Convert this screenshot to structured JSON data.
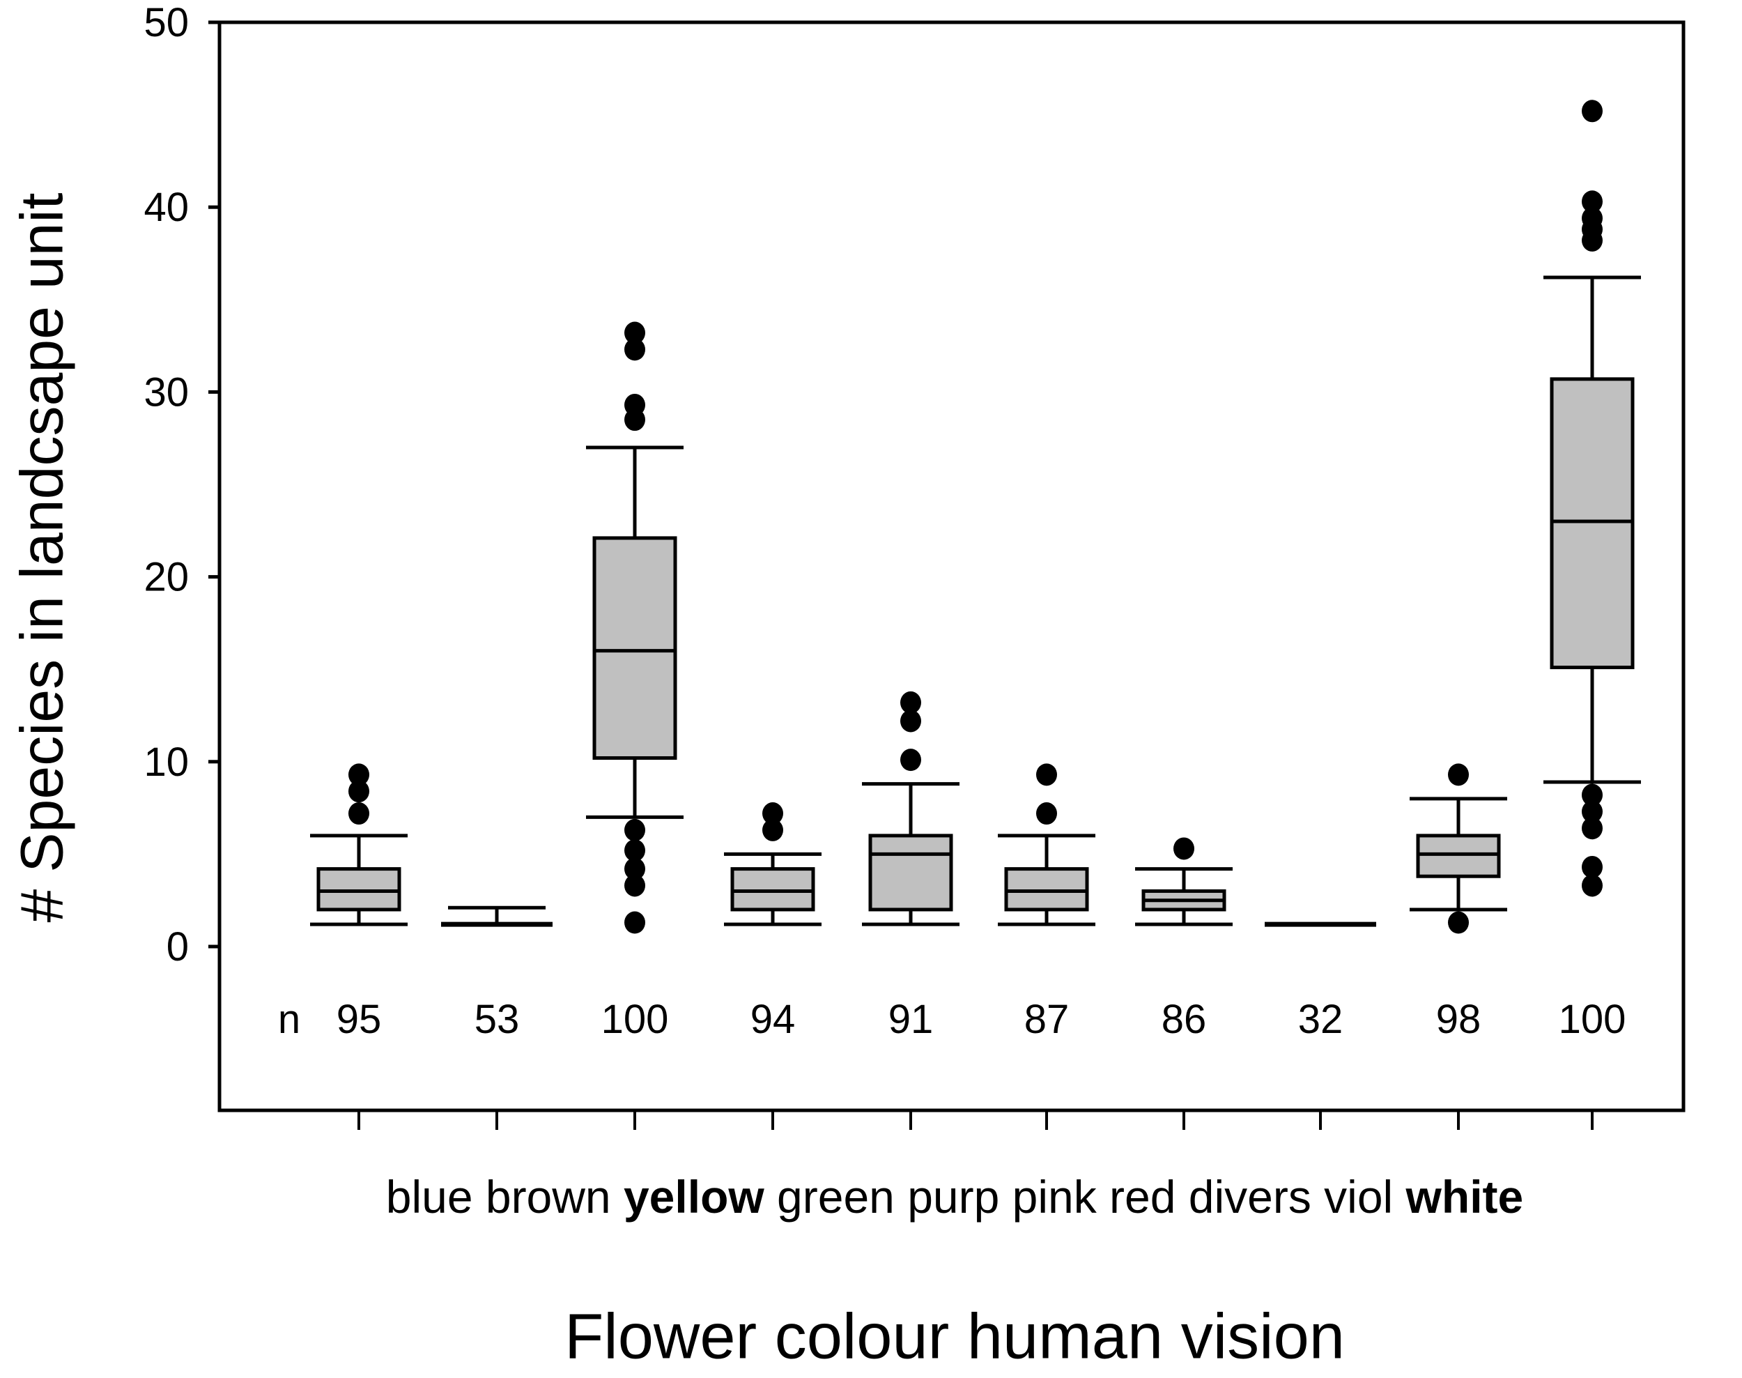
{
  "chart_data": {
    "type": "box",
    "title": "",
    "xlabel": "Flower colour human vision",
    "ylabel": "# Species in landcsape unit",
    "ylim": [
      -9,
      50
    ],
    "yticks": [
      0,
      10,
      20,
      30,
      40,
      50
    ],
    "grid": false,
    "legend": null,
    "n_label": "n",
    "box_fill": "#c0c0c0",
    "line_color": "#000000",
    "categories": [
      "blue",
      "brown",
      "yellow",
      "green",
      "purp",
      "pink",
      "red",
      "divers",
      "viol",
      "white"
    ],
    "bold_categories": [
      "yellow",
      "white"
    ],
    "series": [
      {
        "name": "blue",
        "n": 95,
        "whisker_low": 1.2,
        "q1": 2.0,
        "median": 3.0,
        "q3": 4.2,
        "whisker_high": 6.0,
        "outliers": [
          7.2,
          8.4,
          9.3
        ]
      },
      {
        "name": "brown",
        "n": 53,
        "whisker_low": 1.2,
        "q1": 1.2,
        "median": 1.2,
        "q3": 1.2,
        "whisker_high": 2.1,
        "outliers": []
      },
      {
        "name": "yellow",
        "n": 100,
        "whisker_low": 7.0,
        "q1": 10.2,
        "median": 16.0,
        "q3": 22.1,
        "whisker_high": 27.0,
        "outliers": [
          1.3,
          3.3,
          4.2,
          5.2,
          6.3,
          28.5,
          29.3,
          32.3,
          33.2
        ]
      },
      {
        "name": "green",
        "n": 94,
        "whisker_low": 1.2,
        "q1": 2.0,
        "median": 3.0,
        "q3": 4.2,
        "whisker_high": 5.0,
        "outliers": [
          6.3,
          7.2
        ]
      },
      {
        "name": "purp",
        "n": 91,
        "whisker_low": 1.2,
        "q1": 2.0,
        "median": 5.0,
        "q3": 6.0,
        "whisker_high": 8.8,
        "outliers": [
          10.1,
          12.2,
          13.2
        ]
      },
      {
        "name": "pink",
        "n": 87,
        "whisker_low": 1.2,
        "q1": 2.0,
        "median": 3.0,
        "q3": 4.2,
        "whisker_high": 6.0,
        "outliers": [
          7.2,
          9.3
        ]
      },
      {
        "name": "red",
        "n": 86,
        "whisker_low": 1.2,
        "q1": 2.0,
        "median": 2.5,
        "q3": 3.0,
        "whisker_high": 4.2,
        "outliers": [
          5.3
        ]
      },
      {
        "name": "divers",
        "n": 32,
        "whisker_low": 1.2,
        "q1": 1.2,
        "median": 1.2,
        "q3": 1.2,
        "whisker_high": 1.2,
        "outliers": []
      },
      {
        "name": "viol",
        "n": 98,
        "whisker_low": 2.0,
        "q1": 3.8,
        "median": 5.0,
        "q3": 6.0,
        "whisker_high": 8.0,
        "outliers": [
          1.3,
          9.3
        ]
      },
      {
        "name": "white",
        "n": 100,
        "whisker_low": 8.9,
        "q1": 15.1,
        "median": 23.0,
        "q3": 30.7,
        "whisker_high": 36.2,
        "outliers": [
          3.3,
          4.3,
          6.4,
          7.3,
          8.2,
          38.2,
          38.8,
          39.4,
          40.3,
          45.2
        ]
      }
    ]
  }
}
